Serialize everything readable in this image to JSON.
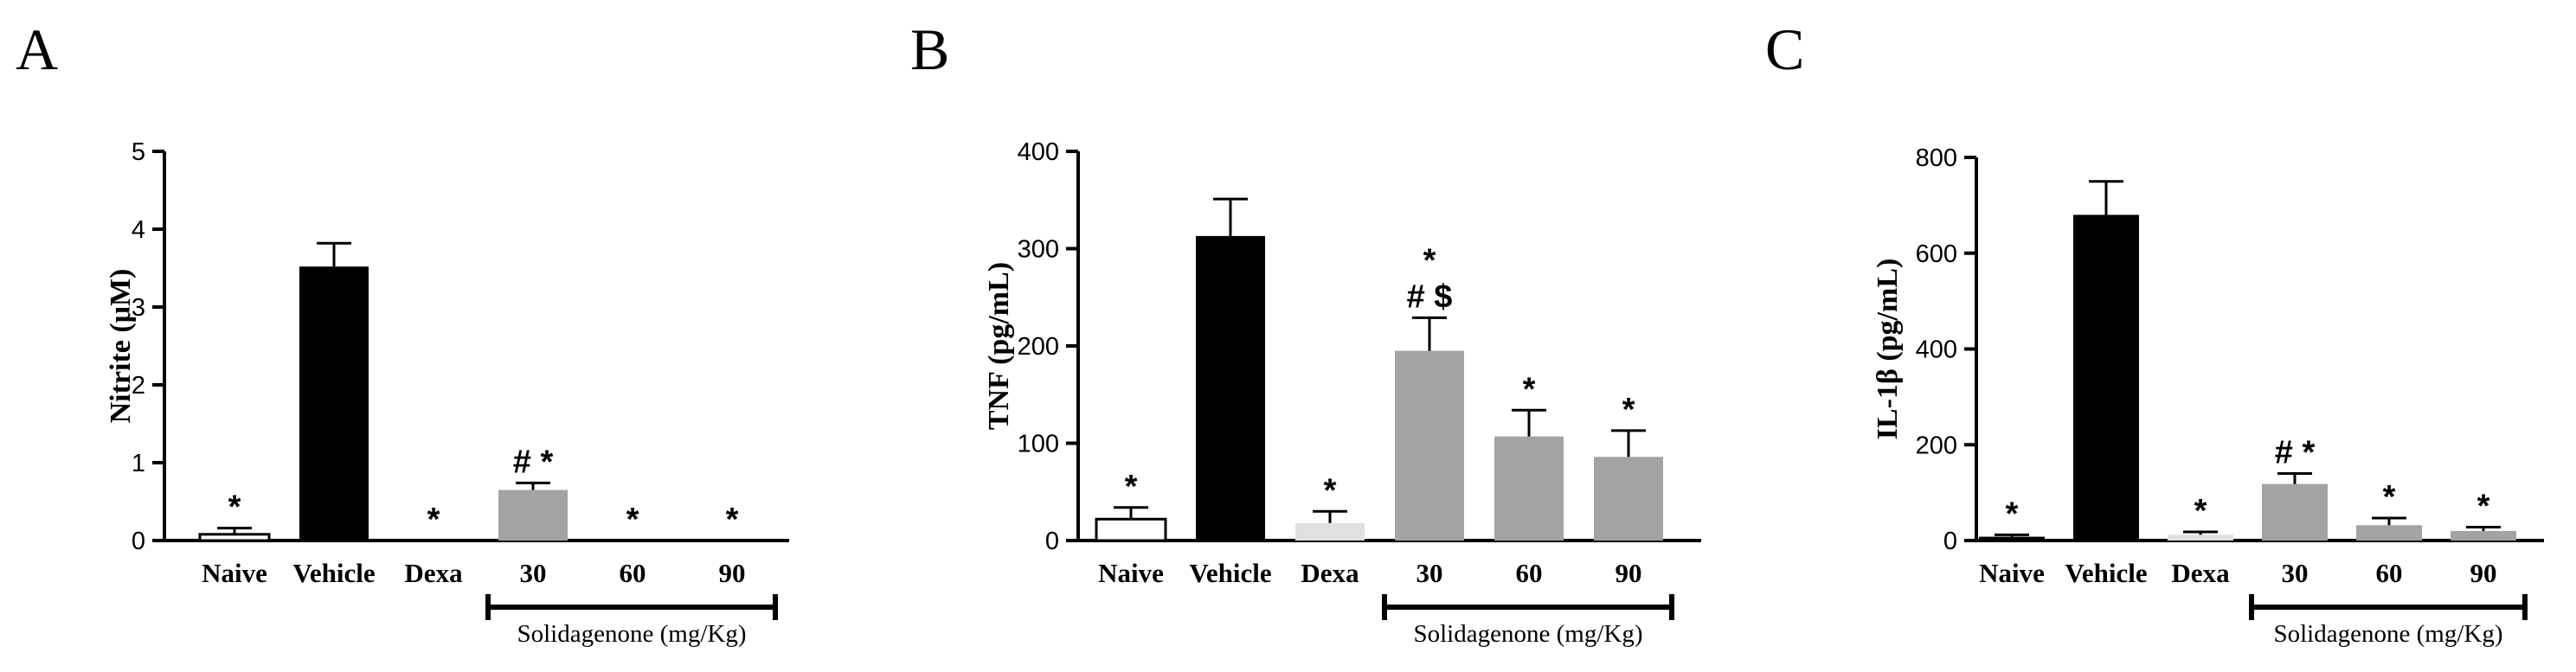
{
  "chart_data": [
    {
      "panel": "A",
      "type": "bar",
      "title": "",
      "xlabel": "",
      "ylabel": "Nitrite (μM)",
      "ylim": [
        0,
        5
      ],
      "yticks": [
        0,
        1,
        2,
        3,
        4,
        5
      ],
      "categories": [
        "Naive",
        "Vehicle",
        "Dexa",
        "30",
        "60",
        "90"
      ],
      "values": [
        0.08,
        3.52,
        0.0,
        0.65,
        0.0,
        0.0
      ],
      "errors": [
        0.08,
        0.3,
        0.0,
        0.09,
        0.0,
        0.0
      ],
      "annotations": [
        "*",
        "",
        "*",
        "# *",
        "*",
        "*"
      ],
      "colors": [
        "#ffffff",
        "#000000",
        "#e0e0e0",
        "#a3a3a6",
        "#a3a3a6",
        "#a3a3a6"
      ],
      "group": {
        "label": "Solidagenone (mg/Kg)",
        "from": 3,
        "to": 5
      }
    },
    {
      "panel": "B",
      "type": "bar",
      "title": "",
      "xlabel": "",
      "ylabel": "TNF (pg/mL)",
      "ylim": [
        0,
        400
      ],
      "yticks": [
        0,
        100,
        200,
        300,
        400
      ],
      "categories": [
        "Naive",
        "Vehicle",
        "Dexa",
        "30",
        "60",
        "90"
      ],
      "values": [
        22,
        313,
        18,
        195,
        107,
        86
      ],
      "errors": [
        12,
        38,
        12,
        34,
        27,
        27
      ],
      "annotations": [
        "*",
        "",
        "*",
        "*|# $",
        "*",
        "*"
      ],
      "colors": [
        "#ffffff",
        "#000000",
        "#e0e0e0",
        "#a3a3a6",
        "#a3a3a6",
        "#a3a3a6"
      ],
      "group": {
        "label": "Solidagenone (mg/Kg)",
        "from": 3,
        "to": 5
      }
    },
    {
      "panel": "C",
      "type": "bar",
      "title": "",
      "xlabel": "",
      "ylabel": "IL-1β (pg/mL)",
      "ylim": [
        0,
        800
      ],
      "yticks": [
        0,
        200,
        400,
        600,
        800
      ],
      "categories": [
        "Naive",
        "Vehicle",
        "Dexa",
        "30",
        "60",
        "90"
      ],
      "values": [
        8,
        680,
        12,
        118,
        32,
        20
      ],
      "errors": [
        4,
        70,
        6,
        22,
        15,
        8
      ],
      "annotations": [
        "*",
        "",
        "*",
        "# *",
        "*",
        "*"
      ],
      "colors": [
        "#000000",
        "#000000",
        "#e0e0e0",
        "#a3a3a6",
        "#a3a3a6",
        "#a3a3a6"
      ],
      "group": {
        "label": "Solidagenone (mg/Kg)",
        "from": 3,
        "to": 5
      }
    }
  ]
}
